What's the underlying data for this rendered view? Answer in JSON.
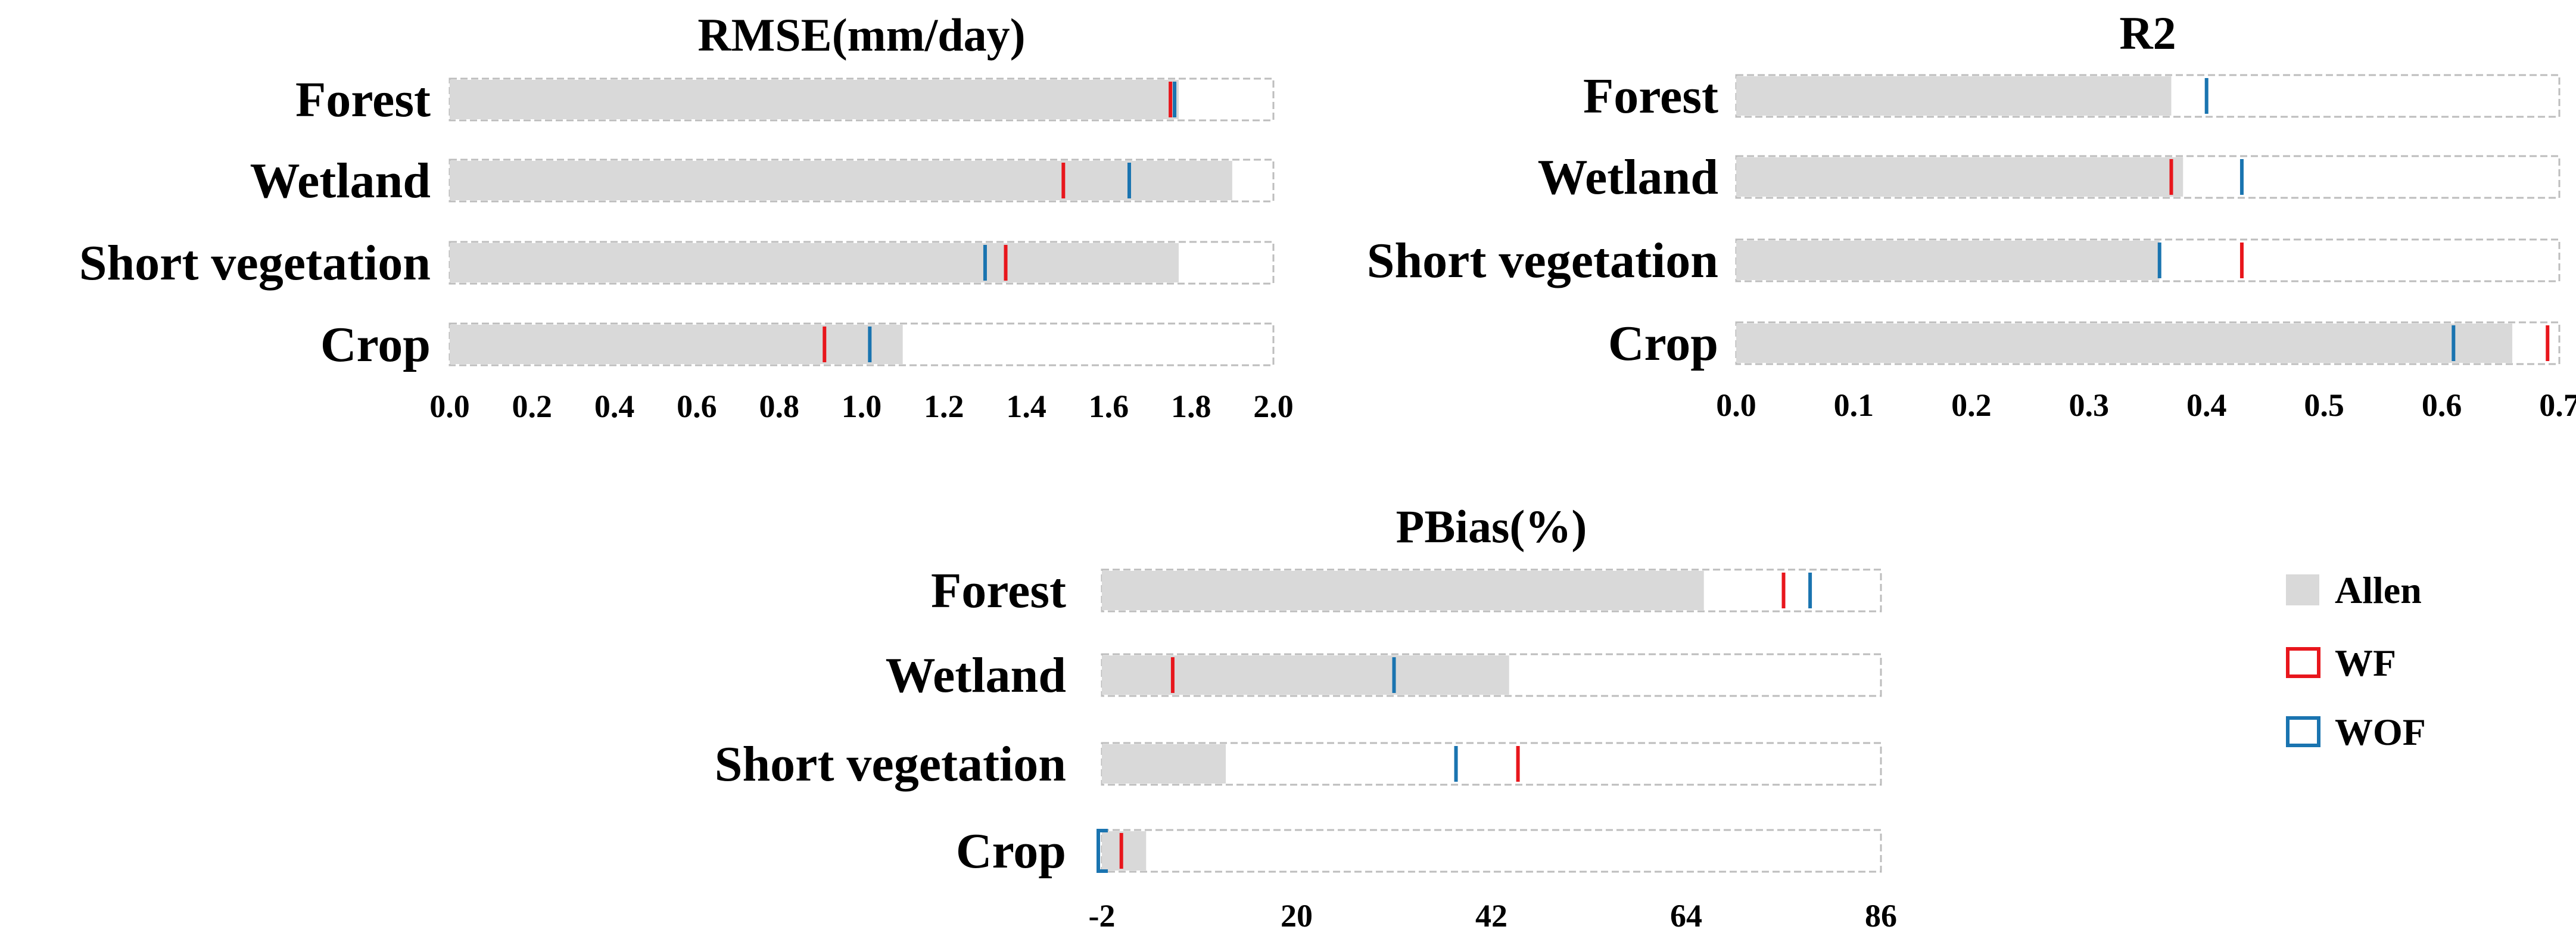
{
  "chart_data": [
    {
      "type": "bar",
      "orientation": "horizontal",
      "title": "RMSE(mm/day)",
      "categories": [
        "Forest",
        "Wetland",
        "Short vegetation",
        "Crop"
      ],
      "xlim": [
        0,
        2.0
      ],
      "ticks": [
        0.0,
        0.2,
        0.4,
        0.6,
        0.8,
        1.0,
        1.2,
        1.4,
        1.6,
        1.8,
        2.0
      ],
      "tick_labels": [
        "0.0",
        "0.2",
        "0.4",
        "0.6",
        "0.8",
        "1.0",
        "1.2",
        "1.4",
        "1.6",
        "1.8",
        "2.0"
      ],
      "series": [
        {
          "name": "Allen",
          "kind": "bar",
          "values": [
            1.77,
            1.9,
            1.77,
            1.1
          ]
        },
        {
          "name": "WF",
          "kind": "marker",
          "values": [
            1.75,
            1.49,
            1.35,
            0.91
          ]
        },
        {
          "name": "WOF",
          "kind": "marker",
          "values": [
            1.76,
            1.65,
            1.3,
            1.02
          ]
        }
      ]
    },
    {
      "type": "bar",
      "orientation": "horizontal",
      "title": "R2",
      "categories": [
        "Forest",
        "Wetland",
        "Short vegetation",
        "Crop"
      ],
      "xlim": [
        0,
        0.7
      ],
      "ticks": [
        0.0,
        0.1,
        0.2,
        0.3,
        0.4,
        0.5,
        0.6,
        0.7
      ],
      "tick_labels": [
        "0.0",
        "0.1",
        "0.2",
        "0.3",
        "0.4",
        "0.5",
        "0.6",
        "0.7"
      ],
      "series": [
        {
          "name": "Allen",
          "kind": "bar",
          "values": [
            0.37,
            0.38,
            0.36,
            0.66
          ]
        },
        {
          "name": "WF",
          "kind": "marker",
          "values": [
            null,
            0.37,
            0.43,
            0.69
          ]
        },
        {
          "name": "WOF",
          "kind": "marker",
          "values": [
            0.4,
            0.43,
            0.36,
            0.61
          ]
        }
      ]
    },
    {
      "type": "bar",
      "orientation": "horizontal",
      "title": "PBias(%)",
      "categories": [
        "Forest",
        "Wetland",
        "Short vegetation",
        "Crop"
      ],
      "xlim": [
        -2,
        86
      ],
      "ticks": [
        -2,
        20,
        42,
        64,
        86
      ],
      "tick_labels": [
        "-2",
        "20",
        "42",
        "64",
        "86"
      ],
      "series": [
        {
          "name": "Allen",
          "kind": "bar",
          "values": [
            66,
            44,
            12,
            3
          ]
        },
        {
          "name": "WF",
          "kind": "marker",
          "values": [
            75,
            6,
            45,
            0.2
          ]
        },
        {
          "name": "WOF",
          "kind": "marker",
          "values": [
            78,
            31,
            38,
            -2
          ]
        }
      ]
    }
  ],
  "legend": [
    {
      "label": "Allen",
      "color": "#d9d9d9",
      "style": "filled-square"
    },
    {
      "label": "WF",
      "color": "#e8161c",
      "style": "outline-square"
    },
    {
      "label": "WOF",
      "color": "#1a74b0",
      "style": "outline-square"
    }
  ],
  "colors": {
    "Allen": "#d9d9d9",
    "WF": "#e8161c",
    "WOF": "#1a74b0"
  }
}
